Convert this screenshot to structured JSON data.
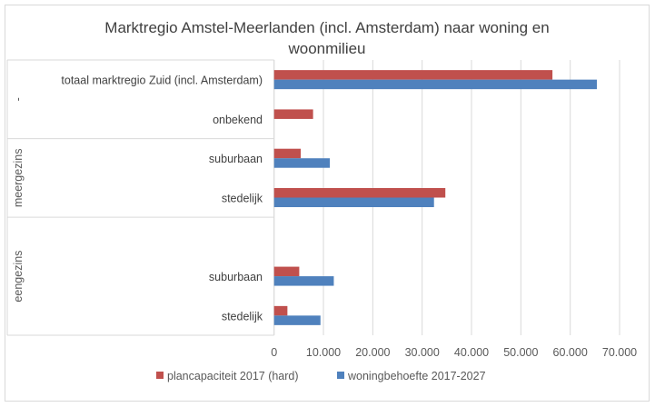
{
  "chart_data": {
    "type": "bar",
    "orientation": "horizontal",
    "title_lines": [
      "Marktregio Amstel-Meerlanden (incl. Amsterdam) naar woning en",
      "woonmilieu"
    ],
    "rows": [
      {
        "label": "totaal marktregio Zuid (incl. Amsterdam)",
        "group": 0
      },
      {
        "label": "onbekend",
        "group": 0
      },
      {
        "label": "suburbaan",
        "group": 1
      },
      {
        "label": "stedelijk",
        "group": 1
      },
      {
        "label": "",
        "group": 2
      },
      {
        "label": "suburbaan",
        "group": 2
      },
      {
        "label": "stedelijk",
        "group": 2
      }
    ],
    "groups": [
      "-",
      "meergezins",
      "eengezins"
    ],
    "series": [
      {
        "name": "plancapaciteit 2017 (hard)",
        "color": "#C0504D",
        "values": [
          56400,
          7900,
          5400,
          34700,
          null,
          5100,
          2700
        ]
      },
      {
        "name": "woningbehoefte 2017-2027",
        "color": "#4F81BD",
        "values": [
          65400,
          null,
          11300,
          32400,
          null,
          12100,
          9400
        ]
      }
    ],
    "xlim": [
      0,
      70000
    ],
    "xticks": [
      0,
      10000,
      20000,
      30000,
      40000,
      50000,
      60000,
      70000
    ],
    "xtick_labels": [
      "0",
      "10.000",
      "20.000",
      "30.000",
      "40.000",
      "50.000",
      "60.000",
      "70.000"
    ],
    "grid": true,
    "legend": "bottom"
  }
}
